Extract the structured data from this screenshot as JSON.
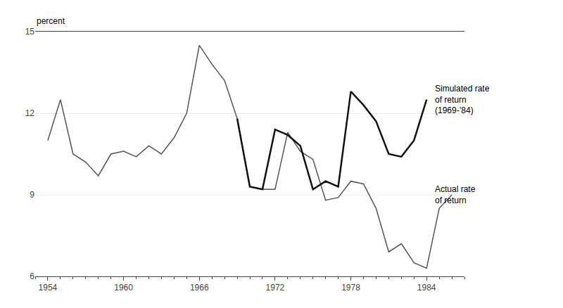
{
  "chart_data": {
    "type": "line",
    "ylabel": "percent",
    "xlim": [
      1953,
      1987
    ],
    "ylim": [
      6,
      15
    ],
    "xticks": [
      1954,
      1960,
      1966,
      1972,
      1978,
      1984
    ],
    "yticks": [
      6,
      9,
      12,
      15
    ],
    "grid": true,
    "series": [
      {
        "color": "#555555",
        "x": [
          1954,
          1955,
          1956,
          1957,
          1958,
          1959,
          1960,
          1961,
          1962,
          1963,
          1964,
          1965,
          1966,
          1967,
          1968,
          1969,
          1970,
          1971,
          1972,
          1973,
          1974,
          1975,
          1976,
          1977,
          1978,
          1979,
          1980,
          1981,
          1982,
          1983,
          1984,
          1985,
          1986
        ],
        "values": [
          11.0,
          12.5,
          10.5,
          10.2,
          9.7,
          10.5,
          10.6,
          10.4,
          10.8,
          10.5,
          11.1,
          12.0,
          14.5,
          13.8,
          13.2,
          11.8,
          9.3,
          9.2,
          9.2,
          11.3,
          10.6,
          10.3,
          8.8,
          8.9,
          9.5,
          9.4,
          8.5,
          6.9,
          7.2,
          6.5,
          6.3,
          8.5,
          9.0
        ]
      },
      {
        "color": "#111111",
        "x": [
          1969,
          1970,
          1971,
          1972,
          1973,
          1974,
          1975,
          1976,
          1977,
          1978,
          1979,
          1980,
          1981,
          1982,
          1983,
          1984
        ],
        "values": [
          11.8,
          9.3,
          9.2,
          11.4,
          11.2,
          10.8,
          9.2,
          9.5,
          9.3,
          12.8,
          12.3,
          11.7,
          10.5,
          10.4,
          11.0,
          12.5
        ]
      }
    ],
    "annotations": [
      {
        "text": "Simulated rate\nof return\n(1969-’84)",
        "x": 1984.2,
        "y": 12.5
      },
      {
        "text": "Actual rate\nof return",
        "x": 1984.2,
        "y": 9.0
      }
    ]
  }
}
